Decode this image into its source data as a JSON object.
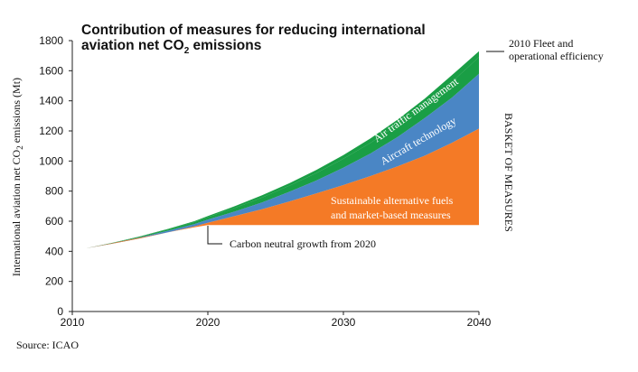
{
  "chart_data": {
    "type": "area",
    "title_line1": "Contribution of measures for reducing international",
    "title_line2_prefix": "aviation net CO",
    "title_line2_sub": "2",
    "title_line2_suffix": " emissions",
    "ylabel_prefix": "International aviation net CO",
    "ylabel_sub": "2",
    "ylabel_suffix": " emissions (Mt)",
    "xlim": [
      2010,
      2040
    ],
    "ylim": [
      0,
      1800
    ],
    "xticks": [
      2010,
      2020,
      2030,
      2040
    ],
    "yticks": [
      0,
      200,
      400,
      600,
      800,
      1000,
      1200,
      1400,
      1600,
      1800
    ],
    "x": [
      2011,
      2013,
      2015,
      2017,
      2019,
      2020,
      2022,
      2024,
      2026,
      2028,
      2030,
      2032,
      2034,
      2036,
      2038,
      2040
    ],
    "series": [
      {
        "name": "Carbon neutral growth from 2020",
        "role": "baseline",
        "values": [
          420,
          455,
          490,
          525,
          560,
          575,
          575,
          575,
          575,
          575,
          575,
          575,
          575,
          575,
          575,
          575
        ]
      },
      {
        "name": "Sustainable alternative fuels and market-based measures",
        "color": "#f47a26",
        "values": [
          420,
          452,
          486,
          525,
          565,
          590,
          635,
          680,
          730,
          785,
          840,
          900,
          965,
          1035,
          1120,
          1215
        ]
      },
      {
        "name": "Aircraft technology",
        "color": "#4a86c5",
        "values": [
          420,
          455,
          492,
          535,
          580,
          610,
          665,
          725,
          795,
          870,
          955,
          1050,
          1160,
          1285,
          1420,
          1580
        ]
      },
      {
        "name": "Air traffic management",
        "color": "#1a9e45",
        "values": [
          420,
          457,
          497,
          544,
          594,
          627,
          689,
          758,
          835,
          920,
          1015,
          1120,
          1240,
          1375,
          1525,
          1690
        ]
      },
      {
        "name": "2010 Fleet and operational efficiency",
        "color": "#1a9e45",
        "values": [
          420,
          458,
          500,
          548,
          600,
          635,
          700,
          772,
          852,
          940,
          1040,
          1150,
          1275,
          1415,
          1570,
          1730
        ]
      }
    ],
    "band_label_fuels_line1": "Sustainable alternative fuels",
    "band_label_fuels_line2": "and market-based measures",
    "band_label_aircraft": "Aircraft technology",
    "band_label_atm": "Air traffic management",
    "callout_cng": "Carbon neutral growth from 2020",
    "callout_fleet_line1": "2010 Fleet and",
    "callout_fleet_line2": "operational efficiency",
    "basket_label": "BASKET OF MEASURES",
    "source": "Source: ICAO"
  }
}
